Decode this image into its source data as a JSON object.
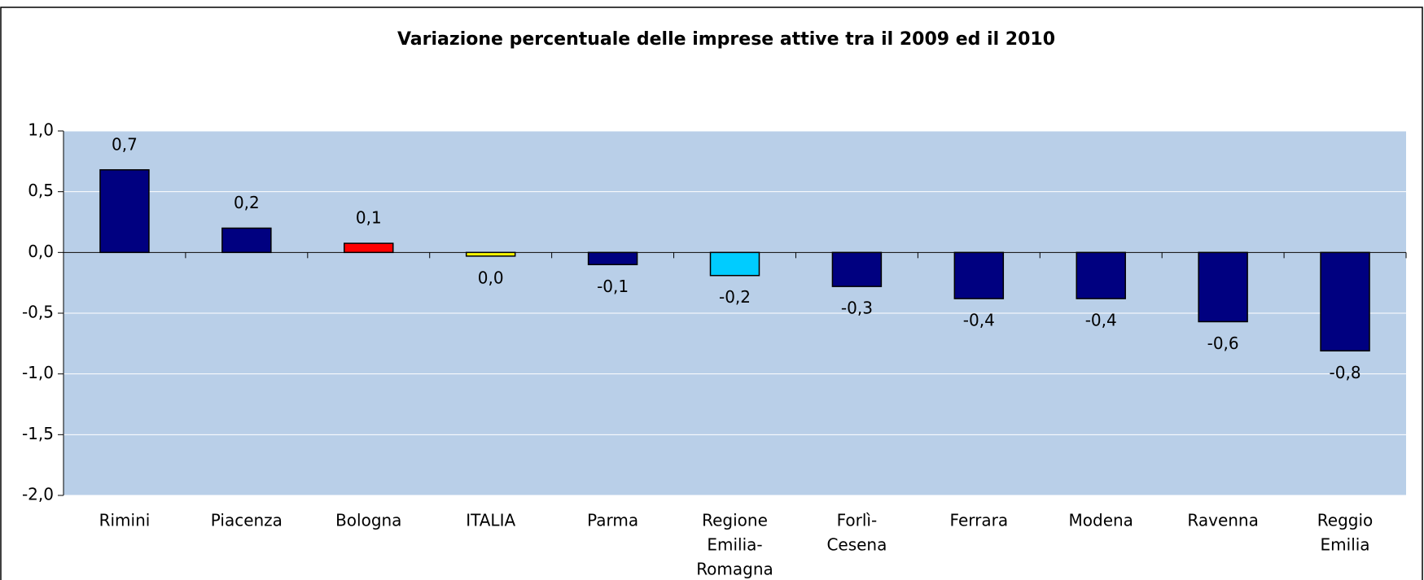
{
  "chart_data": {
    "type": "bar",
    "title": "Variazione percentuale delle imprese attive tra il 2009 ed il 2010",
    "categories": [
      [
        "Rimini"
      ],
      [
        "Piacenza"
      ],
      [
        "Bologna"
      ],
      [
        "ITALIA"
      ],
      [
        "Parma"
      ],
      [
        "Regione",
        "Emilia-",
        "Romagna"
      ],
      [
        "Forlì-",
        "Cesena"
      ],
      [
        "Ferrara"
      ],
      [
        "Modena"
      ],
      [
        "Ravenna"
      ],
      [
        "Reggio",
        "Emilia"
      ]
    ],
    "values": [
      0.68,
      0.2,
      0.075,
      -0.03,
      -0.1,
      -0.19,
      -0.28,
      -0.38,
      -0.38,
      -0.57,
      -0.81
    ],
    "value_labels": [
      "0,7",
      "0,2",
      "0,1",
      "0,0",
      "-0,1",
      "-0,2",
      "-0,3",
      "-0,4",
      "-0,4",
      "-0,6",
      "-0,8"
    ],
    "colors": [
      "#000080",
      "#000080",
      "#ff0000",
      "#ffff00",
      "#000080",
      "#00ccff",
      "#000080",
      "#000080",
      "#000080",
      "#000080",
      "#000080"
    ],
    "ylim": [
      -2.0,
      1.0
    ],
    "yticks": [
      {
        "value": -2.0,
        "label": "-2,0"
      },
      {
        "value": -1.5,
        "label": "-1,5"
      },
      {
        "value": -1.0,
        "label": "-1,0"
      },
      {
        "value": -0.5,
        "label": "-0,5"
      },
      {
        "value": 0.0,
        "label": "0,0"
      },
      {
        "value": 0.5,
        "label": "0,5"
      },
      {
        "value": 1.0,
        "label": "1,0"
      }
    ],
    "grid": true,
    "plot_background": "#b9cfe8"
  }
}
